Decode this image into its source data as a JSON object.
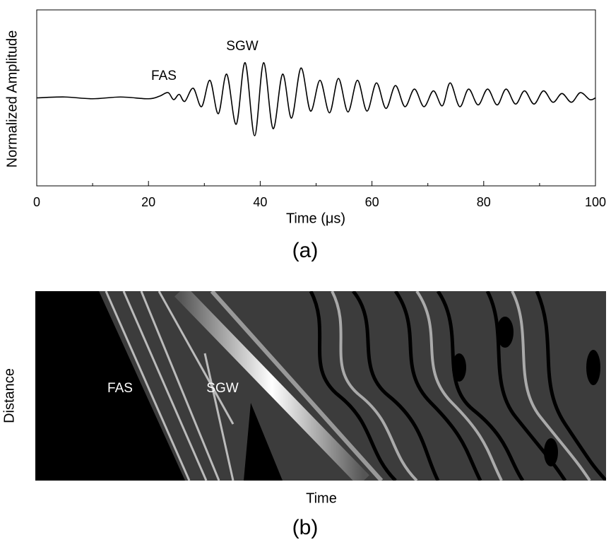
{
  "chart_data": [
    {
      "type": "line",
      "caption": "(a)",
      "xlabel": "Time (μs)",
      "ylabel": "Normalized Amplitude",
      "annotations": [
        "FAS",
        "SGW"
      ],
      "xlim": [
        0,
        100
      ],
      "ylim": [
        -1,
        1
      ],
      "xticks": [
        0,
        20,
        40,
        60,
        80,
        100
      ],
      "minor_xticks": [
        10,
        30,
        50,
        70,
        90
      ],
      "color": "#000000",
      "x": [
        0,
        5,
        10,
        15,
        20,
        22,
        23.5,
        24.5,
        25.5,
        26.5,
        28,
        29.5,
        31,
        32.5,
        34,
        35.7,
        37.3,
        39,
        40.6,
        42.3,
        44,
        45.6,
        47.3,
        49,
        50.7,
        52.4,
        54,
        55.7,
        57.4,
        59.1,
        60.8,
        62.5,
        64.2,
        65.9,
        67.6,
        69.3,
        71,
        72.6,
        74,
        75.7,
        77.3,
        79,
        80.7,
        82.4,
        84,
        85.7,
        87.3,
        89,
        90.7,
        92.4,
        94,
        95.7,
        97.3,
        99,
        100
      ],
      "values": [
        0,
        0.01,
        -0.01,
        0.01,
        -0.01,
        0.02,
        0.06,
        -0.02,
        0.04,
        -0.04,
        0.11,
        -0.1,
        0.2,
        -0.18,
        0.27,
        -0.3,
        0.4,
        -0.43,
        0.4,
        -0.35,
        0.27,
        -0.23,
        0.34,
        -0.15,
        0.2,
        -0.17,
        0.22,
        -0.16,
        0.2,
        -0.15,
        0.17,
        -0.12,
        0.14,
        -0.1,
        0.1,
        -0.1,
        0.08,
        -0.09,
        0.17,
        -0.1,
        0.1,
        -0.08,
        0.1,
        -0.08,
        0.1,
        -0.07,
        0.08,
        -0.07,
        0.08,
        -0.05,
        0.05,
        -0.05,
        0.06,
        -0.02,
        0
      ]
    },
    {
      "type": "image",
      "caption": "(b)",
      "xlabel": "Time",
      "ylabel": "Distance",
      "annotations": [
        "FAS",
        "SGW"
      ]
    }
  ]
}
